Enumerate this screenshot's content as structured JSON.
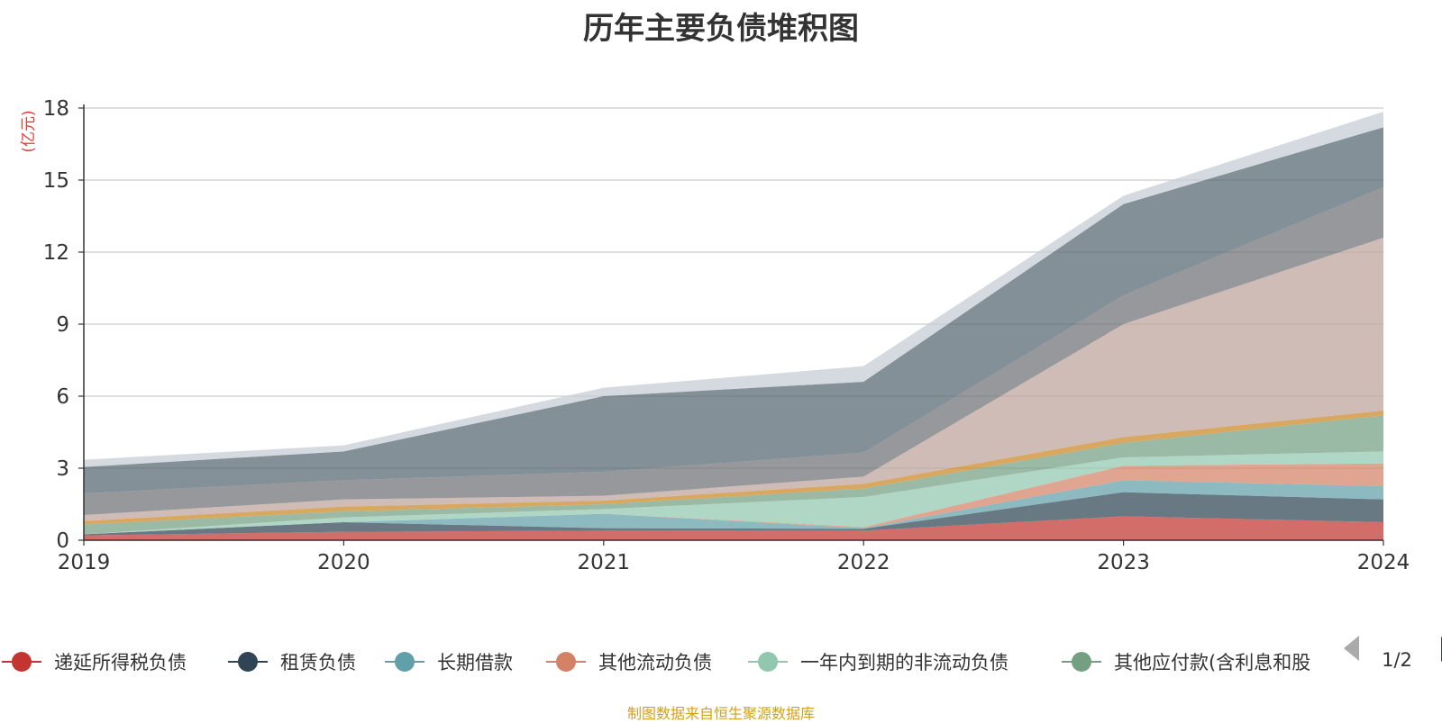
{
  "chart_data": {
    "type": "area",
    "stacked": true,
    "title": "历年主要负债堆积图",
    "unit_label": "(亿元)",
    "x": [
      "2019",
      "2020",
      "2021",
      "2022",
      "2023",
      "2024"
    ],
    "ylim": [
      0,
      18
    ],
    "yticks": [
      "0",
      "3",
      "6",
      "9",
      "12",
      "15",
      "18"
    ],
    "grid": true,
    "legend_position": "bottom",
    "series": [
      {
        "name": "递延所得税负债",
        "color": "#c23531",
        "values": [
          0.2,
          0.35,
          0.4,
          0.4,
          1.0,
          0.75
        ]
      },
      {
        "name": "租赁负债",
        "color": "#2f4554",
        "values": [
          0.05,
          0.4,
          0.1,
          0.08,
          1.0,
          0.95
        ]
      },
      {
        "name": "长期借款",
        "color": "#61a0a8",
        "values": [
          0.0,
          0.0,
          0.6,
          0.02,
          0.5,
          0.55
        ]
      },
      {
        "name": "其他流动负债",
        "color": "#d48265",
        "values": [
          0.0,
          0.0,
          0.0,
          0.05,
          0.6,
          0.95
        ]
      },
      {
        "name": "一年内到期的非流动负债",
        "color": "#91c7ae",
        "values": [
          0.0,
          0.2,
          0.2,
          1.25,
          0.35,
          0.5
        ]
      },
      {
        "name": "其他应付款(含利息和股",
        "color": "#749f83",
        "values": [
          0.4,
          0.25,
          0.2,
          0.35,
          0.6,
          1.5
        ]
      },
      {
        "name": "",
        "color": "#ca8622",
        "values": [
          0.15,
          0.2,
          0.15,
          0.2,
          0.25,
          0.2
        ]
      },
      {
        "name": "",
        "color": "#bda29a",
        "values": [
          0.25,
          0.3,
          0.2,
          0.3,
          4.7,
          7.2
        ]
      },
      {
        "name": "",
        "color": "#6e7074",
        "values": [
          0.9,
          0.8,
          1.0,
          1.0,
          1.2,
          2.1
        ]
      },
      {
        "name": "",
        "color": "#546570",
        "values": [
          1.1,
          1.2,
          3.15,
          2.95,
          3.8,
          2.5
        ]
      },
      {
        "name": "",
        "color": "#c4ccd3",
        "values": [
          0.3,
          0.25,
          0.35,
          0.65,
          0.35,
          0.65
        ]
      }
    ]
  },
  "legend": {
    "page_indicator": "1/2"
  },
  "footer": {
    "source": "制图数据来自恒生聚源数据库"
  }
}
